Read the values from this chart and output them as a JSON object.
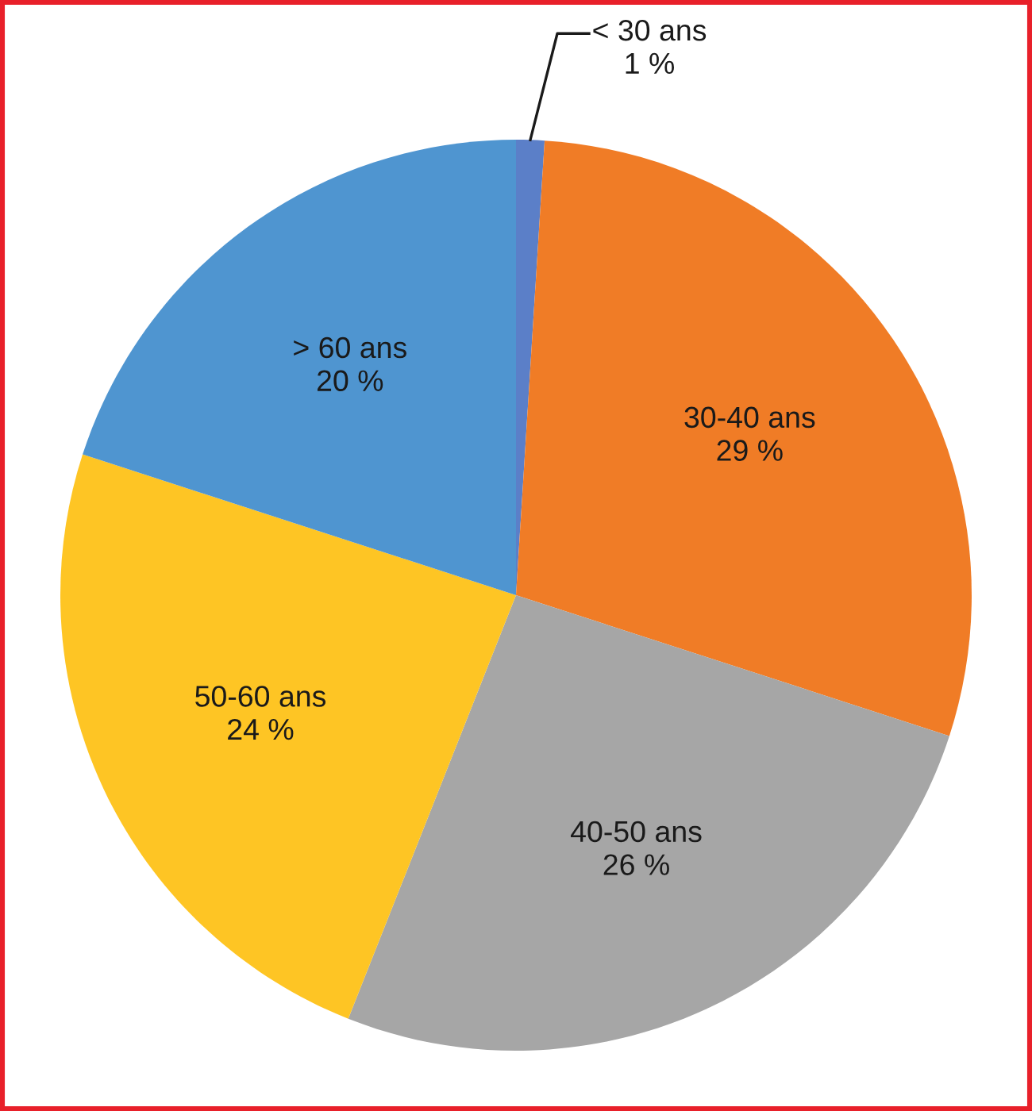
{
  "chart_data": {
    "type": "pie",
    "categories": [
      "< 30 ans",
      "30-40 ans",
      "40-50 ans",
      "50-60 ans",
      "> 60 ans"
    ],
    "values": [
      1,
      29,
      26,
      24,
      20
    ],
    "colors": [
      "#5b7fc8",
      "#f07c26",
      "#a6a6a6",
      "#fec524",
      "#4f95d0"
    ],
    "value_labels": [
      "1 %",
      "29 %",
      "26 %",
      "24 %",
      "20 %"
    ]
  }
}
